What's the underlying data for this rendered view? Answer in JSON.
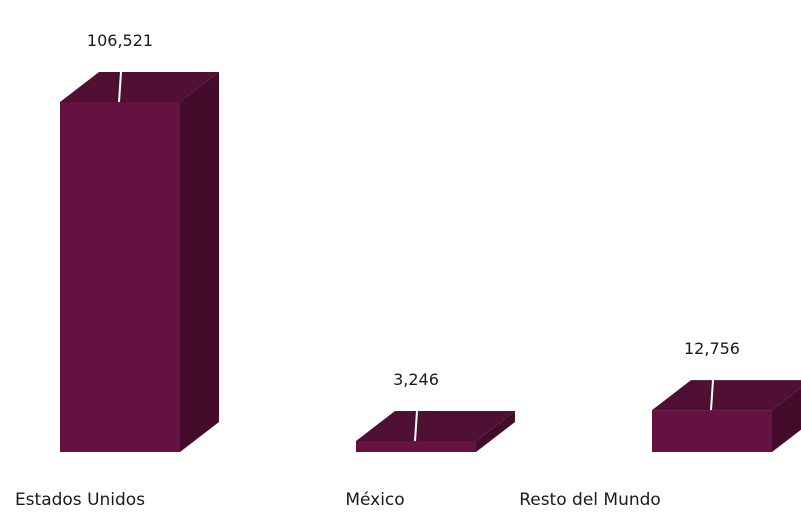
{
  "chart_data": {
    "type": "bar",
    "style": "3d-column",
    "categories": [
      "Estados Unidos",
      "México",
      "Resto del  Mundo"
    ],
    "values": [
      106521,
      3246,
      12756
    ],
    "value_labels": [
      "106,521",
      "3,246",
      "12,756"
    ],
    "title": "",
    "xlabel": "",
    "ylabel": "",
    "ylim": [
      0,
      110000
    ],
    "grid": false,
    "legend": "none",
    "colors": {
      "front": "#661241",
      "top": "#4f1034",
      "side": "#440c2a",
      "highlight": "#ffffff"
    }
  }
}
